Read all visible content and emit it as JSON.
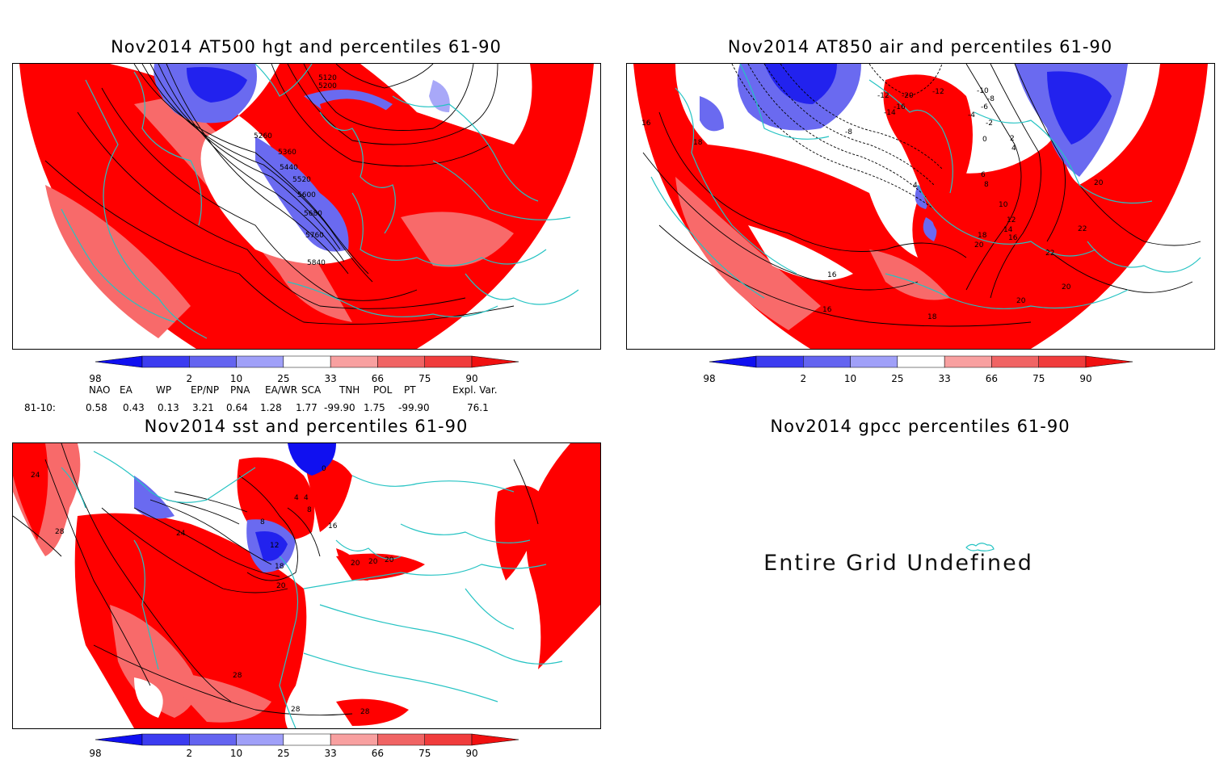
{
  "panels": [
    {
      "id": "hgt500",
      "title": "Nov2014 AT500 hgt and percentiles 61-90",
      "contour_labels": [
        "5120",
        "5200",
        "5260",
        "5360",
        "5440",
        "5520",
        "5600",
        "5680",
        "5760",
        "5840"
      ]
    },
    {
      "id": "air850",
      "title": "Nov2014 AT850 air and percentiles 61-90",
      "contour_labels": [
        "-20",
        "-16",
        "-14",
        "-12",
        "-12",
        "-10",
        "-8",
        "-8",
        "-6",
        "-4",
        "-2",
        "0",
        "2",
        "4",
        "4",
        "6",
        "8",
        "10",
        "12",
        "14",
        "16",
        "16",
        "16",
        "16",
        "18",
        "18",
        "18",
        "20",
        "20",
        "20",
        "20",
        "22",
        "22"
      ]
    },
    {
      "id": "sst",
      "title": "Nov2014 sst and percentiles 61-90",
      "contour_labels": [
        "0",
        "4",
        "4",
        "8",
        "8",
        "12",
        "16",
        "18",
        "20",
        "20",
        "20",
        "20",
        "24",
        "24",
        "28",
        "28",
        "28",
        "28"
      ]
    },
    {
      "id": "gpcc",
      "title": "Nov2014 gpcc percentiles 61-90",
      "message": "Entire Grid Undefined"
    }
  ],
  "colorbar": {
    "labels": [
      "2",
      "10",
      "25",
      "33",
      "66",
      "75",
      "90",
      "98"
    ],
    "colors": [
      "#1010f0",
      "#3c3cf0",
      "#6464f0",
      "#a0a0f8",
      "#ffffff",
      "#f8a0a0",
      "#f06464",
      "#f03c3c",
      "#f01010"
    ]
  },
  "teleconnections": {
    "row_label": "81-10:",
    "indices": [
      {
        "name": "NAO",
        "value": "0.58"
      },
      {
        "name": "EA",
        "value": "0.43"
      },
      {
        "name": "WP",
        "value": "0.13"
      },
      {
        "name": "EP/NP",
        "value": "3.21"
      },
      {
        "name": "PNA",
        "value": "0.64"
      },
      {
        "name": "EA/WR",
        "value": "1.28"
      },
      {
        "name": "SCA",
        "value": "1.77"
      },
      {
        "name": "TNH",
        "value": "-99.90"
      },
      {
        "name": "POL",
        "value": "1.75"
      },
      {
        "name": "PT",
        "value": "-99.90"
      },
      {
        "name": "Expl. Var.",
        "value": "76.1"
      }
    ]
  },
  "colors": {
    "red_fill": "#ff0000",
    "light_red": "#f86a6a",
    "blue_strong": "#2222ee",
    "blue_mid": "#6a6af0",
    "blue_light": "#a8a8f8",
    "coast": "#25c3c3",
    "contour": "#000000"
  }
}
